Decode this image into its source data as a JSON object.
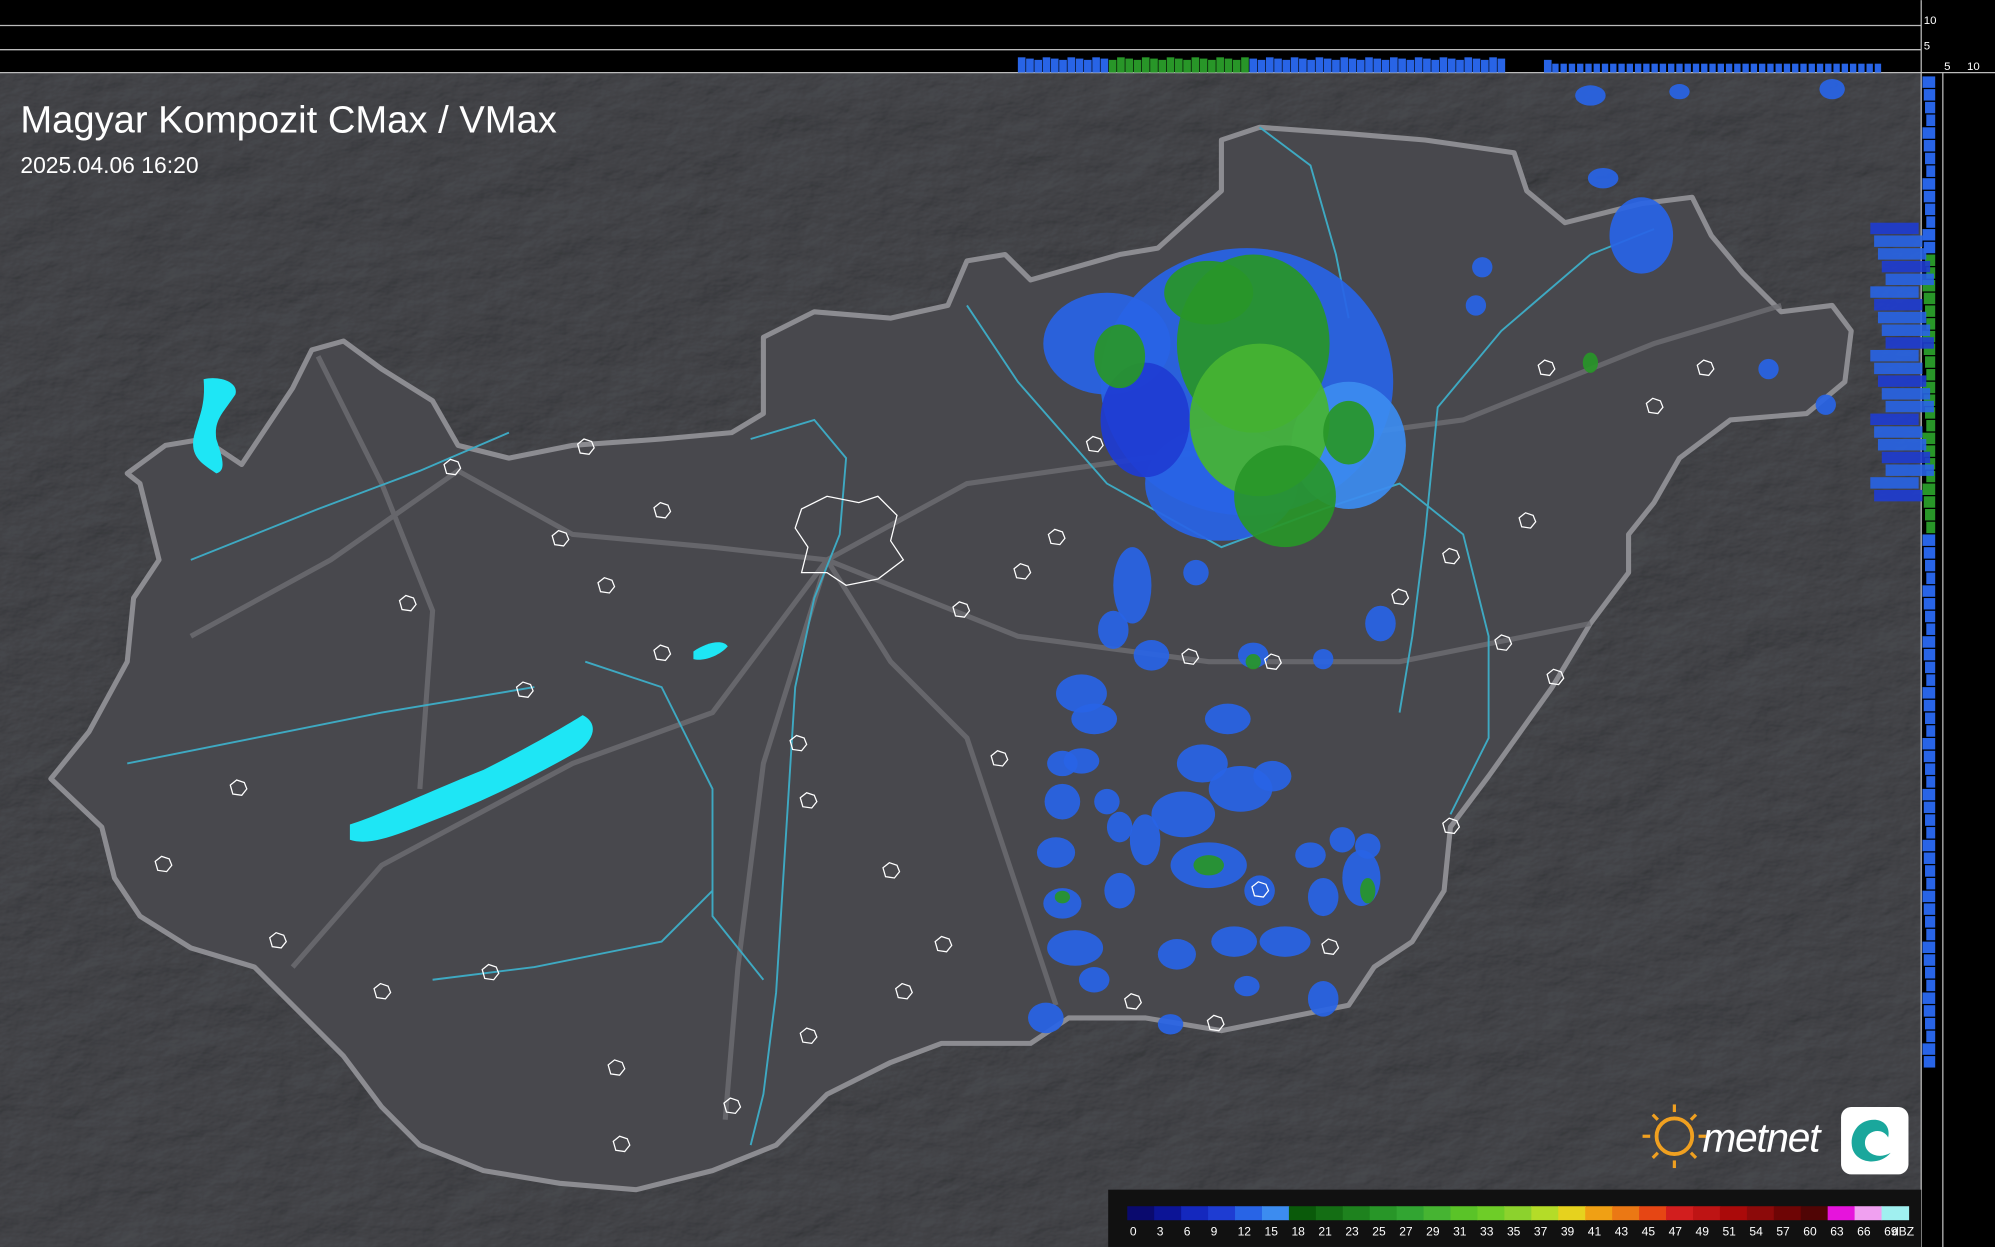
{
  "header": {
    "title": "Magyar Kompozit CMax / VMax",
    "timestamp": "2025.04.06 16:20"
  },
  "legend": {
    "ticks": [
      0,
      3,
      6,
      9,
      12,
      15,
      18,
      21,
      23,
      25,
      27,
      29,
      31,
      33,
      35,
      37,
      39,
      41,
      43,
      45,
      47,
      49,
      51,
      54,
      57,
      60,
      63,
      66,
      69
    ],
    "colors": [
      "#0a0a6e",
      "#0c1496",
      "#1428be",
      "#1e3cd2",
      "#2864e6",
      "#3c8cf0",
      "#0a5a0a",
      "#146e14",
      "#1e821e",
      "#289628",
      "#32a532",
      "#46b432",
      "#5ac328",
      "#6ecd28",
      "#8cd22d",
      "#b4dc28",
      "#e6d21e",
      "#f0a014",
      "#eb7814",
      "#e64614",
      "#d21e1e",
      "#be1414",
      "#aa0a0a",
      "#8c0a0a",
      "#6e0505",
      "#500505",
      "#e614dc",
      "#f0a0f0",
      "#a0f0f0"
    ],
    "unit": "dBZ"
  },
  "logo": {
    "text": "metnet"
  },
  "profile": {
    "y_ticks": [
      10,
      5
    ],
    "x_ticks": [
      5,
      10
    ]
  }
}
